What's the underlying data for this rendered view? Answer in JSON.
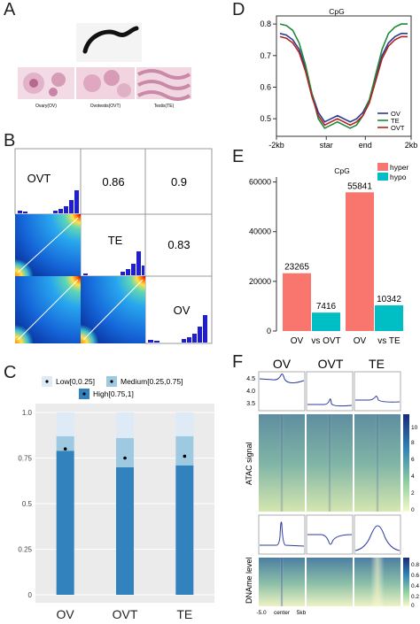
{
  "panels": {
    "A": {
      "label": "A",
      "captions": [
        "Ovary(OV)",
        "Ovotestis(OVT)",
        "Testis(TE)"
      ]
    },
    "B": {
      "label": "B",
      "matrix": {
        "labels": [
          "OVT",
          "TE",
          "OV"
        ],
        "correlations": [
          {
            "pair": "OVT-TE",
            "value": "0.86"
          },
          {
            "pair": "OVT-OV",
            "value": "0.9"
          },
          {
            "pair": "TE-OV",
            "value": "0.83"
          }
        ]
      }
    },
    "C": {
      "label": "C",
      "legend": [
        "Low[0,0.25]",
        "Medium[0.25,0.75]",
        "High[0.75,1]"
      ],
      "colors": {
        "low": "#deebf7",
        "medium": "#9ecae1",
        "high": "#3182bd"
      }
    },
    "D": {
      "label": "D",
      "colors": {
        "OV": "#2b3a8f",
        "TE": "#1e8a3a",
        "OVT": "#b22222"
      }
    },
    "E": {
      "label": "E",
      "colors": {
        "hyper": "#f8766d",
        "hypo": "#00bfc4"
      }
    },
    "F": {
      "label": "F",
      "columns": [
        "OV",
        "OVT",
        "TE"
      ],
      "row_labels": [
        "ATAC signal",
        "DNAme level"
      ],
      "profile_ticks": [
        "4.5",
        "4.0",
        "3.5"
      ],
      "x_ticks": [
        "-5.0",
        "center",
        "5kb"
      ],
      "colorbar1_ticks": [
        "10",
        "8",
        "6",
        "4",
        "2",
        "0"
      ],
      "colorbar2_ticks": [
        "0.8",
        "0.6",
        "0.4",
        "0.2",
        "0"
      ]
    }
  },
  "chart_data": [
    {
      "type": "bar",
      "panel": "C",
      "title": "",
      "categories": [
        "OV",
        "OVT",
        "TE"
      ],
      "ylim": [
        0,
        1
      ],
      "yticks": [
        "0",
        "0.25",
        "0.5",
        "0.75",
        "1.0"
      ],
      "series": [
        {
          "name": "High[0.75,1]",
          "values": [
            0.79,
            0.7,
            0.71
          ]
        },
        {
          "name": "Medium[0.25,0.75]",
          "values": [
            0.08,
            0.16,
            0.16
          ]
        },
        {
          "name": "Low[0,0.25]",
          "values": [
            0.13,
            0.14,
            0.13
          ]
        }
      ],
      "mean_points": [
        0.8,
        0.75,
        0.76
      ],
      "grid": true,
      "legend": "top"
    },
    {
      "type": "line",
      "panel": "D",
      "title": "CpG",
      "x_ticks": [
        "-2kb",
        "star",
        "end",
        "2kb"
      ],
      "ylim": [
        0.45,
        0.82
      ],
      "yticks": [
        "0.8",
        "0.7",
        "0.6",
        "0.5"
      ],
      "x": [
        0,
        0.05,
        0.1,
        0.15,
        0.2,
        0.25,
        0.3,
        0.35,
        0.4,
        0.45,
        0.5,
        0.55,
        0.6,
        0.65,
        0.7,
        0.75,
        0.8,
        0.85,
        0.9,
        0.95,
        1.0
      ],
      "series": [
        {
          "name": "OV",
          "values": [
            0.77,
            0.765,
            0.75,
            0.72,
            0.66,
            0.58,
            0.52,
            0.49,
            0.5,
            0.51,
            0.5,
            0.49,
            0.5,
            0.52,
            0.56,
            0.63,
            0.7,
            0.74,
            0.76,
            0.77,
            0.77
          ]
        },
        {
          "name": "TE",
          "values": [
            0.8,
            0.795,
            0.78,
            0.74,
            0.67,
            0.58,
            0.5,
            0.47,
            0.48,
            0.49,
            0.48,
            0.47,
            0.48,
            0.51,
            0.56,
            0.64,
            0.72,
            0.77,
            0.79,
            0.8,
            0.8
          ]
        },
        {
          "name": "OVT",
          "values": [
            0.76,
            0.755,
            0.74,
            0.71,
            0.65,
            0.57,
            0.51,
            0.48,
            0.49,
            0.5,
            0.49,
            0.48,
            0.49,
            0.51,
            0.55,
            0.62,
            0.69,
            0.73,
            0.75,
            0.76,
            0.76
          ]
        }
      ],
      "legend": "bottom-right"
    },
    {
      "type": "bar",
      "panel": "E",
      "title": "CpG",
      "categories": [
        "OV vs OVT",
        "OV vs TE"
      ],
      "category_left_labels": [
        "OV",
        "OV"
      ],
      "category_right_labels": [
        "vs OVT",
        "vs TE"
      ],
      "ylim": [
        0,
        62000
      ],
      "yticks": [
        "0",
        "20000",
        "40000",
        "60000"
      ],
      "series": [
        {
          "name": "hyper",
          "values": [
            23265,
            55841
          ],
          "labels": [
            "23265",
            "55841"
          ]
        },
        {
          "name": "hypo",
          "values": [
            7416,
            10342
          ],
          "labels": [
            "7416",
            "10342"
          ]
        }
      ],
      "legend": "top-right"
    }
  ]
}
